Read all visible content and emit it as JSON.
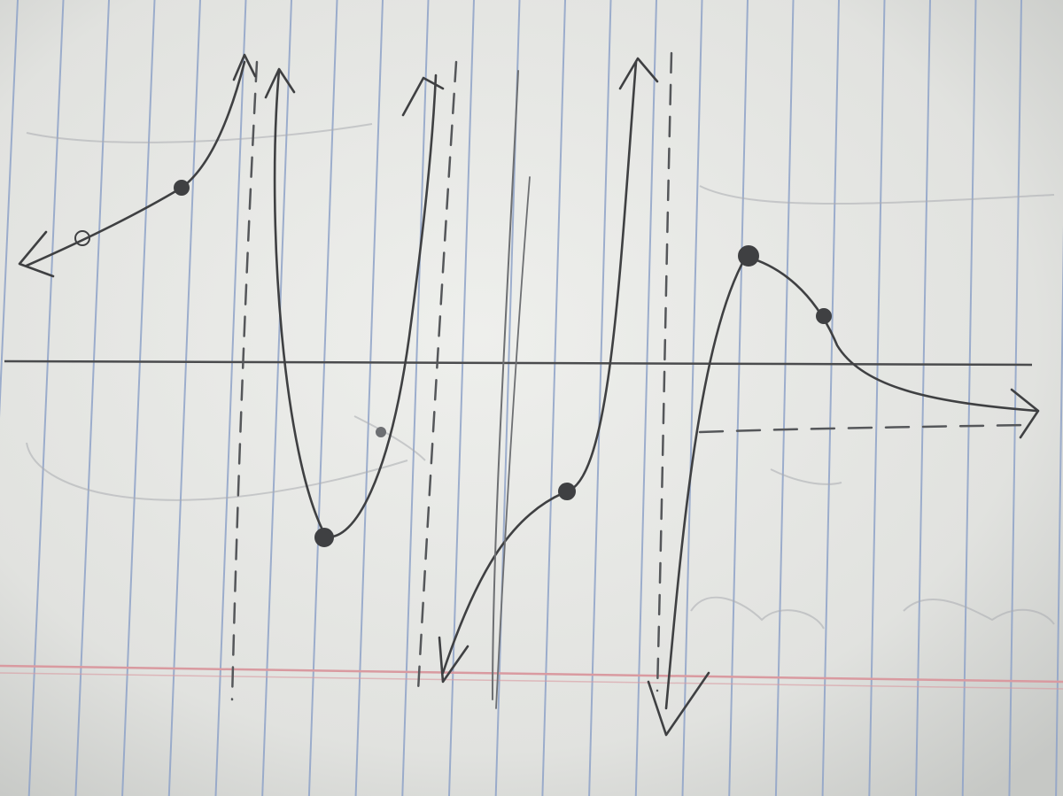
{
  "photo": {
    "subject": "pencil-sketch-of-rational-function-graph",
    "paper": "lined-notebook-paper",
    "colors": {
      "paper": "#e4e5e2",
      "paper_shadow": "#c9cbc8",
      "rule_line": "#8fa3c8",
      "margin_line": "#d99aa0",
      "pencil": "#3f4042",
      "pencil_light": "#6d6f72",
      "faint_sketch": "#a9acb0"
    }
  }
}
